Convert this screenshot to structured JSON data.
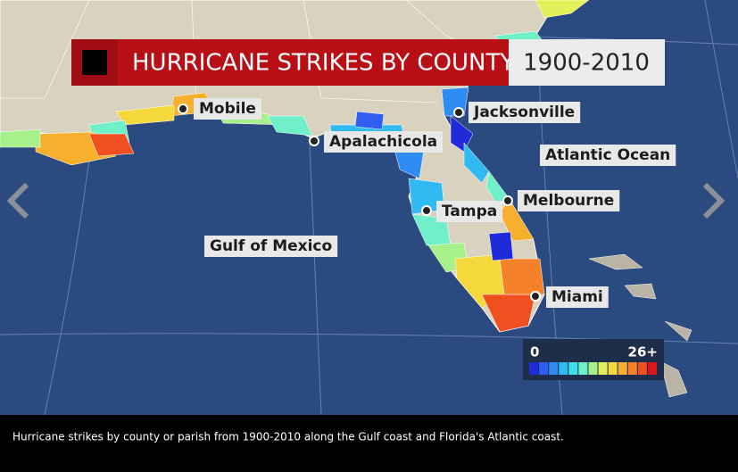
{
  "header": {
    "title": "HURRICANE STRIKES BY COUNTY",
    "years": "1900-2010"
  },
  "cities": [
    "Mobile",
    "Apalachicola",
    "Jacksonville",
    "Tampa",
    "Melbourne",
    "Miami"
  ],
  "water": [
    "Atlantic Ocean",
    "Gulf of Mexico"
  ],
  "legend": {
    "min": "0",
    "max": "26+",
    "colors": [
      "#1f2bd9",
      "#2f5ef0",
      "#2f8cf5",
      "#31b9f2",
      "#3de0ea",
      "#6ff0c8",
      "#a8f08a",
      "#e2f05a",
      "#f5d93c",
      "#f7b02e",
      "#f5822a",
      "#f0501f",
      "#d8181c"
    ]
  },
  "caption": "Hurricane strikes by county or parish from 1900-2010 along the Gulf coast and Florida's Atlantic coast."
}
